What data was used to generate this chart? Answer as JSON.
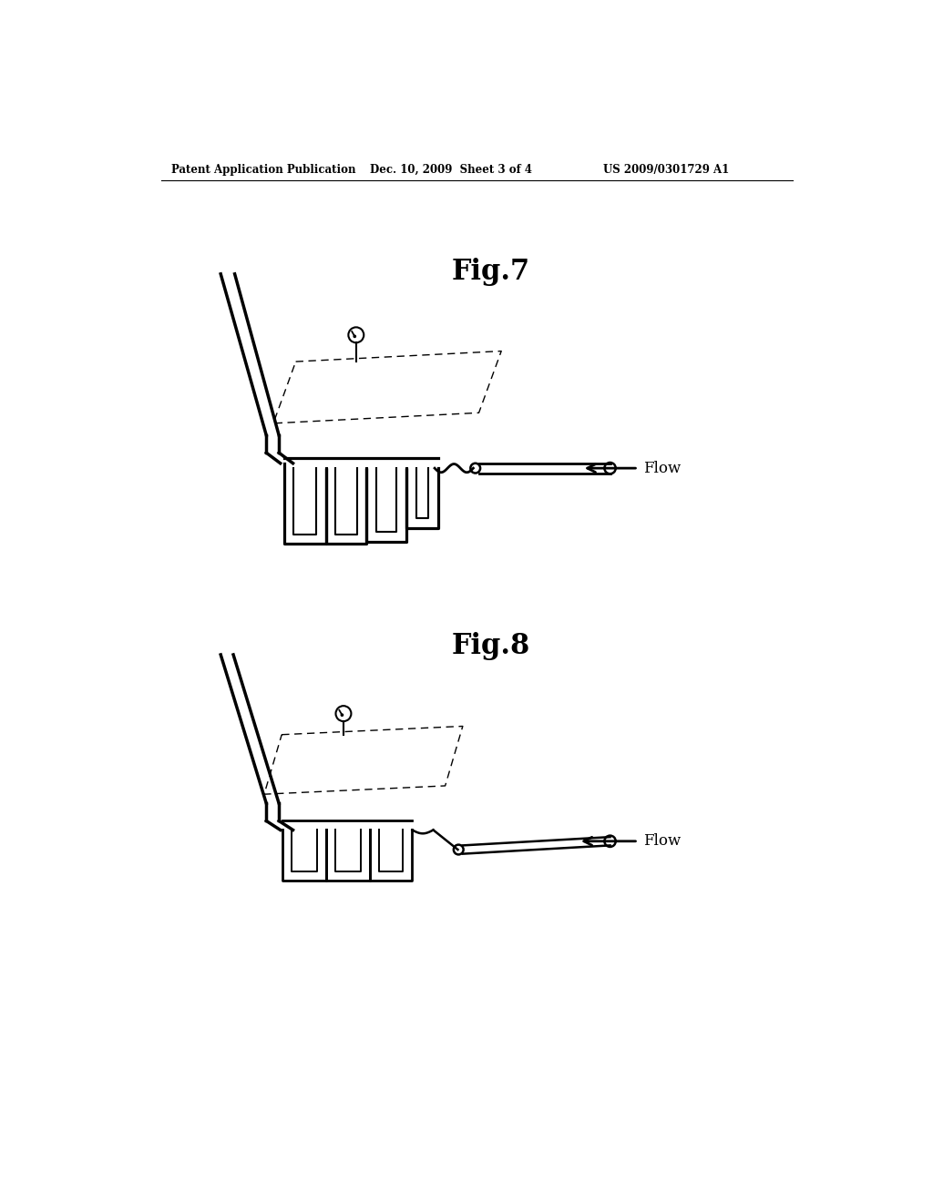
{
  "bg_color": "#ffffff",
  "line_color": "#000000",
  "header_left": "Patent Application Publication",
  "header_middle": "Dec. 10, 2009  Sheet 3 of 4",
  "header_right": "US 2009/0301729 A1",
  "fig7_label": "Fig.7",
  "fig8_label": "Fig.8",
  "flow_label": "Flow"
}
